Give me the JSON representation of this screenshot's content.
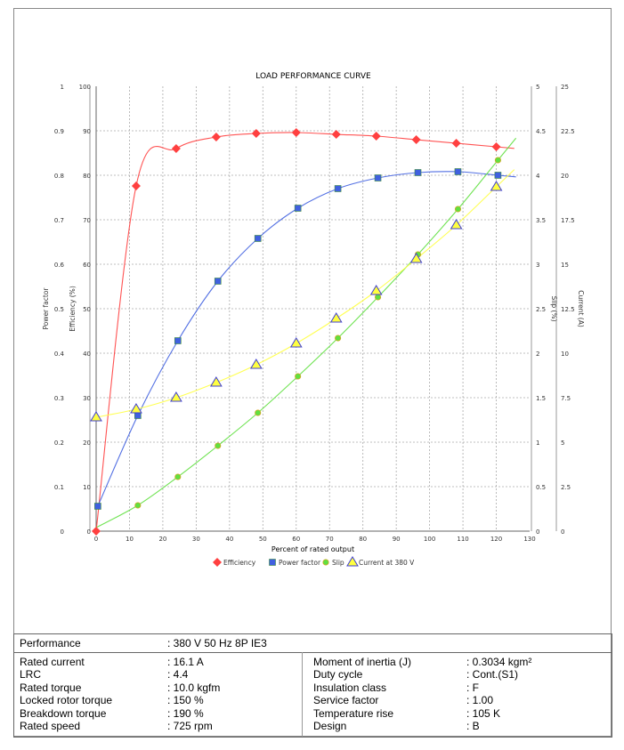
{
  "chart_data": {
    "type": "line",
    "title": "LOAD PERFORMANCE CURVE",
    "xlabel": "Percent of rated output",
    "xlim": [
      0,
      130
    ],
    "xticks": [
      0,
      10,
      20,
      30,
      40,
      50,
      60,
      70,
      80,
      90,
      100,
      110,
      120,
      130
    ],
    "grid": true,
    "legend_position": "bottom",
    "axes": [
      {
        "id": "pf",
        "label": "Power factor",
        "side": "left-outer",
        "ylim": [
          0,
          1
        ],
        "ticks": [
          "0",
          "0.1",
          "0.2",
          "0.3",
          "0.4",
          "0.5",
          "0.6",
          "0.7",
          "0.8",
          "0.9",
          "1"
        ]
      },
      {
        "id": "eff",
        "label": "Efficiency (%)",
        "side": "left-inner",
        "ylim": [
          0,
          100
        ],
        "ticks": [
          "0",
          "10",
          "20",
          "30",
          "40",
          "50",
          "60",
          "70",
          "80",
          "90",
          "100"
        ]
      },
      {
        "id": "slip",
        "label": "Slip (%)",
        "side": "right-inner",
        "ylim": [
          0,
          5
        ],
        "ticks": [
          "0",
          "0.5",
          "1",
          "1.5",
          "2",
          "2.5",
          "3",
          "3.5",
          "4",
          "4.5",
          "5"
        ]
      },
      {
        "id": "cur",
        "label": "Current (A)",
        "side": "right-outer",
        "ylim": [
          0,
          25
        ],
        "ticks": [
          "0",
          "2.5",
          "5",
          "7.5",
          "10",
          "12.5",
          "15",
          "17.5",
          "20",
          "22.5",
          "25"
        ]
      }
    ],
    "series": [
      {
        "name": "Efficiency",
        "axis": "eff",
        "color": "#ff4040",
        "marker": "diamond",
        "x": [
          0,
          12,
          24,
          36,
          48,
          60,
          72,
          84,
          96,
          108,
          120
        ],
        "values": [
          0,
          77.6,
          86,
          88.6,
          89.4,
          89.6,
          89.2,
          88.8,
          88,
          87.2,
          86.4
        ]
      },
      {
        "name": "Power factor",
        "axis": "pf",
        "color": "#4060e0",
        "marker": "square",
        "x": [
          0.5,
          12.5,
          24.5,
          36.5,
          48.5,
          60.5,
          72.5,
          84.5,
          96.5,
          108.5,
          120.5
        ],
        "values": [
          0.056,
          0.26,
          0.428,
          0.562,
          0.658,
          0.726,
          0.77,
          0.794,
          0.806,
          0.808,
          0.8
        ]
      },
      {
        "name": "Slip",
        "axis": "slip",
        "color": "#60e040",
        "marker": "circle",
        "x": [
          12.5,
          24.5,
          36.5,
          48.5,
          60.5,
          72.5,
          84.5,
          96.5,
          108.5,
          120.5
        ],
        "values": [
          0.29,
          0.61,
          0.96,
          1.33,
          1.74,
          2.17,
          2.63,
          3.11,
          3.62,
          4.17
        ]
      },
      {
        "name": "Current at 380 V",
        "axis": "cur",
        "color": "#ffff40",
        "marker": "triangle",
        "x": [
          0,
          12,
          24,
          36,
          48,
          60,
          72,
          84,
          96,
          108,
          120
        ],
        "values": [
          6.4,
          6.85,
          7.5,
          8.35,
          9.35,
          10.55,
          11.95,
          13.5,
          15.3,
          17.2,
          19.35
        ]
      }
    ]
  },
  "table": {
    "performance": {
      "label": "Performance",
      "value": ": 380 V 50 Hz 8P IE3"
    },
    "left": [
      {
        "label": "Rated current",
        "value": ": 16.1 A"
      },
      {
        "label": "LRC",
        "value": ": 4.4"
      },
      {
        "label": "Rated torque",
        "value": ": 10.0 kgfm"
      },
      {
        "label": "Locked rotor torque",
        "value": ": 150 %"
      },
      {
        "label": "Breakdown torque",
        "value": ": 190 %"
      },
      {
        "label": "Rated speed",
        "value": ": 725 rpm"
      }
    ],
    "right": [
      {
        "label": "Moment of inertia (J)",
        "value": ": 0.3034 kgm²"
      },
      {
        "label": "Duty cycle",
        "value": ": Cont.(S1)"
      },
      {
        "label": "Insulation class",
        "value": ": F"
      },
      {
        "label": "Service factor",
        "value": ": 1.00"
      },
      {
        "label": "Temperature rise",
        "value": ": 105 K"
      },
      {
        "label": "Design",
        "value": ": B"
      }
    ]
  }
}
